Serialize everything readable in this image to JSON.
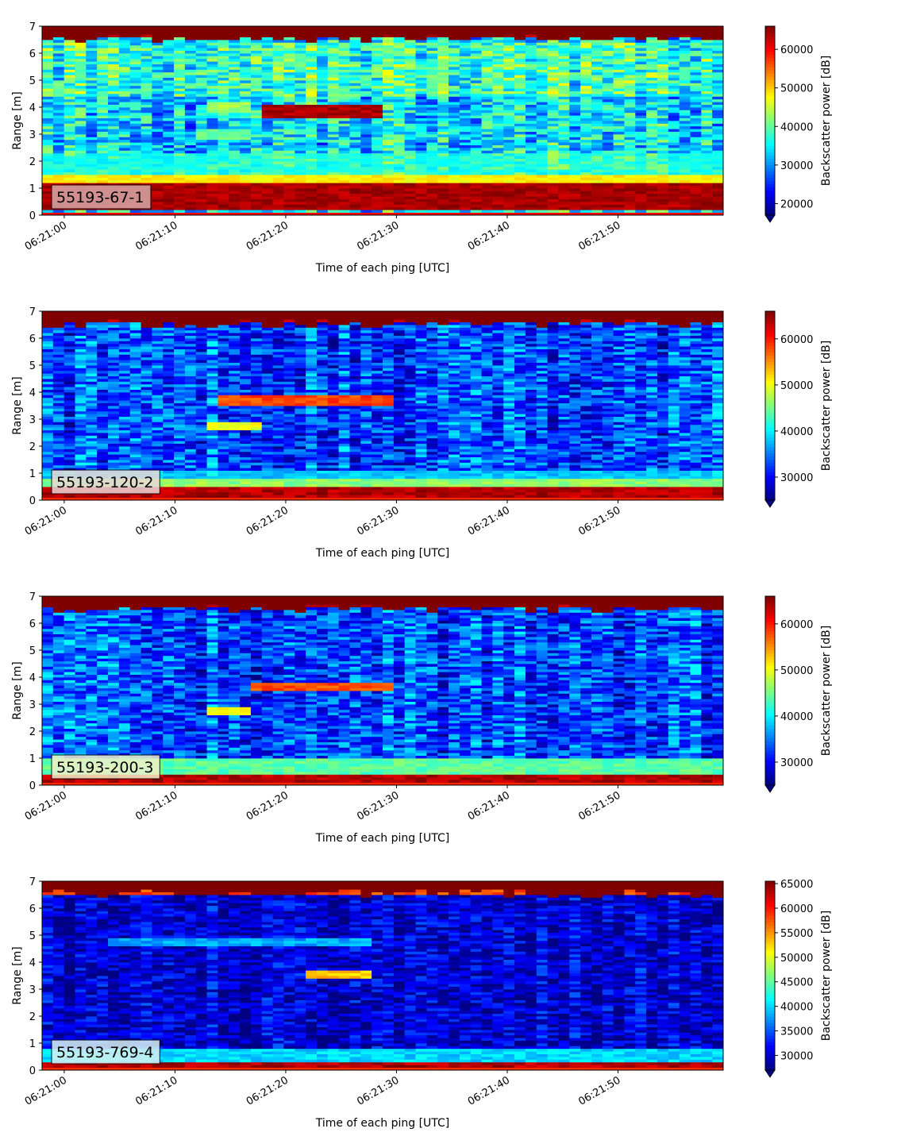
{
  "chart_data": [
    {
      "type": "heatmap",
      "label": "55193-67-1",
      "xlabel": "Time of each ping [UTC]",
      "ylabel": "Range [m]",
      "colorbar_label": "Backscatter power [dB]",
      "x_ticks": [
        "06:21:00",
        "06:21:10",
        "06:21:20",
        "06:21:30",
        "06:21:40",
        "06:21:50"
      ],
      "x_range": [
        "06:20:58",
        "06:21:59.5"
      ],
      "ylim": [
        0,
        7
      ],
      "y_ticks": [
        0,
        1,
        2,
        3,
        4,
        5,
        6,
        7
      ],
      "clim": [
        17000,
        66000
      ],
      "colorbar_ticks": [
        20000,
        30000,
        40000,
        50000,
        60000
      ],
      "colormap": "jet",
      "label_box_color": "#d8a8a8",
      "features": [
        {
          "range_m": [
            0.2,
            1.2
          ],
          "power": 66000
        },
        {
          "range_m": [
            1.2,
            1.5
          ],
          "power": 50000
        },
        {
          "range_m": [
            1.5,
            2.3
          ],
          "power": 38000
        },
        {
          "range_m": [
            3.6,
            4.1
          ],
          "time": [
            "06:21:18",
            "06:21:29"
          ],
          "power": 66000
        },
        {
          "range_m": [
            3.8,
            4.2
          ],
          "time": [
            "06:21:13",
            "06:21:17"
          ],
          "power": 45000
        },
        {
          "range_m": [
            2.8,
            3.2
          ],
          "time": [
            "06:21:12",
            "06:21:17"
          ],
          "power": 42000
        },
        {
          "range_m": [
            6.6,
            7.0
          ],
          "power": 66000
        }
      ]
    },
    {
      "type": "heatmap",
      "label": "55193-120-2",
      "xlabel": "Time of each ping [UTC]",
      "ylabel": "Range [m]",
      "colorbar_label": "Backscatter power [dB]",
      "x_ticks": [
        "06:21:00",
        "06:21:10",
        "06:21:20",
        "06:21:30",
        "06:21:40",
        "06:21:50"
      ],
      "x_range": [
        "06:20:58",
        "06:21:59.5"
      ],
      "ylim": [
        0,
        7
      ],
      "y_ticks": [
        0,
        1,
        2,
        3,
        4,
        5,
        6,
        7
      ],
      "clim": [
        25000,
        66000
      ],
      "colorbar_ticks": [
        30000,
        40000,
        50000,
        60000
      ],
      "colormap": "jet",
      "label_box_color": "#ecd8d8",
      "features": [
        {
          "range_m": [
            0.1,
            0.5
          ],
          "power": 66000
        },
        {
          "range_m": [
            0.5,
            0.8
          ],
          "power": 48000
        },
        {
          "range_m": [
            0.8,
            1.1
          ],
          "power": 40000
        },
        {
          "range_m": [
            3.5,
            3.9
          ],
          "time": [
            "06:21:14",
            "06:21:30"
          ],
          "power": 60000
        },
        {
          "range_m": [
            2.6,
            2.9
          ],
          "time": [
            "06:21:13",
            "06:21:18"
          ],
          "power": 52000
        },
        {
          "range_m": [
            6.6,
            7.0
          ],
          "power": 66000
        }
      ]
    },
    {
      "type": "heatmap",
      "label": "55193-200-3",
      "xlabel": "Time of each ping [UTC]",
      "ylabel": "Range [m]",
      "colorbar_label": "Backscatter power [dB]",
      "x_ticks": [
        "06:21:00",
        "06:21:10",
        "06:21:20",
        "06:21:30",
        "06:21:40",
        "06:21:50"
      ],
      "x_range": [
        "06:20:58",
        "06:21:59.5"
      ],
      "ylim": [
        0,
        7
      ],
      "y_ticks": [
        0,
        1,
        2,
        3,
        4,
        5,
        6,
        7
      ],
      "clim": [
        25000,
        66000
      ],
      "colorbar_ticks": [
        30000,
        40000,
        50000,
        60000
      ],
      "colormap": "jet",
      "label_box_color": "#f2f0c8",
      "features": [
        {
          "range_m": [
            0.1,
            0.45
          ],
          "power": 66000
        },
        {
          "range_m": [
            0.45,
            1.0
          ],
          "power": 46000
        },
        {
          "range_m": [
            3.5,
            3.8
          ],
          "time": [
            "06:21:17",
            "06:21:30"
          ],
          "power": 60000
        },
        {
          "range_m": [
            2.6,
            2.9
          ],
          "time": [
            "06:21:13",
            "06:21:17"
          ],
          "power": 52000
        },
        {
          "range_m": [
            6.6,
            7.0
          ],
          "power": 66000
        }
      ]
    },
    {
      "type": "heatmap",
      "label": "55193-769-4",
      "xlabel": "Time of each ping [UTC]",
      "ylabel": "Range [m]",
      "colorbar_label": "Backscatter power [dB]",
      "x_ticks": [
        "06:21:00",
        "06:21:10",
        "06:21:20",
        "06:21:30",
        "06:21:40",
        "06:21:50"
      ],
      "x_range": [
        "06:20:58",
        "06:21:59.5"
      ],
      "ylim": [
        0,
        7
      ],
      "y_ticks": [
        0,
        1,
        2,
        3,
        4,
        5,
        6,
        7
      ],
      "clim": [
        27000,
        65500
      ],
      "colorbar_ticks": [
        30000,
        35000,
        40000,
        45000,
        50000,
        55000,
        60000,
        65000
      ],
      "colormap": "jet",
      "label_box_color": "#d8f2f2",
      "features": [
        {
          "range_m": [
            0.1,
            0.35
          ],
          "power": 65500
        },
        {
          "range_m": [
            0.35,
            0.8
          ],
          "power": 42000
        },
        {
          "range_m": [
            3.4,
            3.7
          ],
          "time": [
            "06:21:22",
            "06:21:28"
          ],
          "power": 55000
        },
        {
          "range_m": [
            4.6,
            4.9
          ],
          "time": [
            "06:21:04",
            "06:21:28"
          ],
          "power": 40000
        },
        {
          "range_m": [
            6.5,
            7.0
          ],
          "power": 60000
        }
      ]
    }
  ]
}
